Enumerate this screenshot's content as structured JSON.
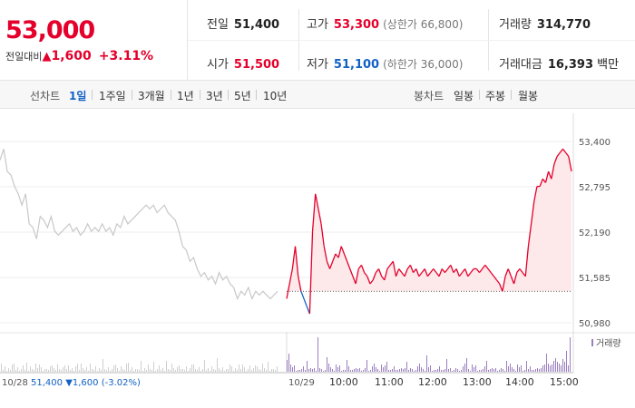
{
  "price": {
    "current": "53,000",
    "label": "전일대비",
    "arrow": "▲",
    "change": "1,600",
    "percent": "+3.11%"
  },
  "stats": {
    "prev_close": {
      "label": "전일",
      "value": "51,400"
    },
    "high": {
      "label": "고가",
      "value": "53,300",
      "note": "(상한가 66,800)"
    },
    "volume": {
      "label": "거래량",
      "value": "314,770"
    },
    "open": {
      "label": "시가",
      "value": "51,500"
    },
    "low": {
      "label": "저가",
      "value": "51,100",
      "note": "(하한가 36,000)"
    },
    "turnover": {
      "label": "거래대금",
      "value": "16,393",
      "unit": "백만"
    }
  },
  "tabs": {
    "line_label": "선차트",
    "line": [
      "1일",
      "1주일",
      "3개월",
      "1년",
      "3년",
      "5년",
      "10년"
    ],
    "active": "1일",
    "candle_label": "봉차트",
    "candle": [
      "일봉",
      "주봉",
      "월봉"
    ]
  },
  "colors": {
    "up": "#e4002b",
    "down": "#1261c4",
    "prev_day": "#c8c8c8",
    "fill": "#fde9ea",
    "volume": "#9b7fc0"
  },
  "chart_data": {
    "type": "line",
    "ylim": [
      50980,
      53400
    ],
    "y_ticks": [
      "53,400",
      "52,795",
      "52,190",
      "51,585",
      "50,980"
    ],
    "baseline": 51400,
    "x_day_labels": [
      "10/28",
      "10/29"
    ],
    "x_time_labels": [
      "10:00",
      "11:00",
      "12:00",
      "13:00",
      "14:00",
      "15:00"
    ],
    "prev_day_caption": {
      "date": "10/28",
      "close": "51,400",
      "arrow": "▼",
      "change": "1,600",
      "pct": "(-3.02%)"
    },
    "volume_legend": "거래량",
    "series": [
      {
        "name": "10/28",
        "values": [
          53150,
          53300,
          53000,
          52950,
          52800,
          52700,
          52550,
          52700,
          52300,
          52250,
          52100,
          52400,
          52350,
          52250,
          52400,
          52200,
          52150,
          52200,
          52250,
          52300,
          52200,
          52250,
          52150,
          52200,
          52300,
          52200,
          52250,
          52200,
          52300,
          52200,
          52250,
          52150,
          52300,
          52250,
          52400,
          52300,
          52350,
          52400,
          52450,
          52500,
          52550,
          52500,
          52550,
          52450,
          52500,
          52550,
          52450,
          52400,
          52350,
          52200,
          52000,
          51950,
          51800,
          51850,
          51700,
          51600,
          51650,
          51550,
          51600,
          51500,
          51650,
          51550,
          51600,
          51500,
          51450,
          51300,
          51400,
          51350,
          51450,
          51300,
          51400,
          51350,
          51400,
          51350,
          51300,
          51350,
          51400
        ]
      },
      {
        "name": "10/29",
        "values": [
          51300,
          51500,
          51700,
          52000,
          51600,
          51400,
          51300,
          51200,
          51100,
          52200,
          52700,
          52500,
          52300,
          52000,
          51800,
          51700,
          51800,
          51900,
          51850,
          52000,
          51900,
          51800,
          51700,
          51600,
          51500,
          51700,
          51750,
          51650,
          51600,
          51500,
          51550,
          51650,
          51700,
          51600,
          51550,
          51700,
          51750,
          51800,
          51600,
          51700,
          51650,
          51600,
          51700,
          51750,
          51650,
          51700,
          51600,
          51650,
          51700,
          51600,
          51650,
          51700,
          51650,
          51600,
          51700,
          51650,
          51700,
          51750,
          51650,
          51700,
          51600,
          51650,
          51700,
          51600,
          51650,
          51700,
          51700,
          51650,
          51700,
          51750,
          51700,
          51650,
          51600,
          51550,
          51500,
          51400,
          51600,
          51700,
          51600,
          51500,
          51650,
          51700,
          51650,
          51600,
          52000,
          52300,
          52600,
          52800,
          52800,
          52900,
          52850,
          53000,
          52900,
          53100,
          53200,
          53250,
          53300,
          53250,
          53200,
          53000
        ]
      }
    ]
  }
}
